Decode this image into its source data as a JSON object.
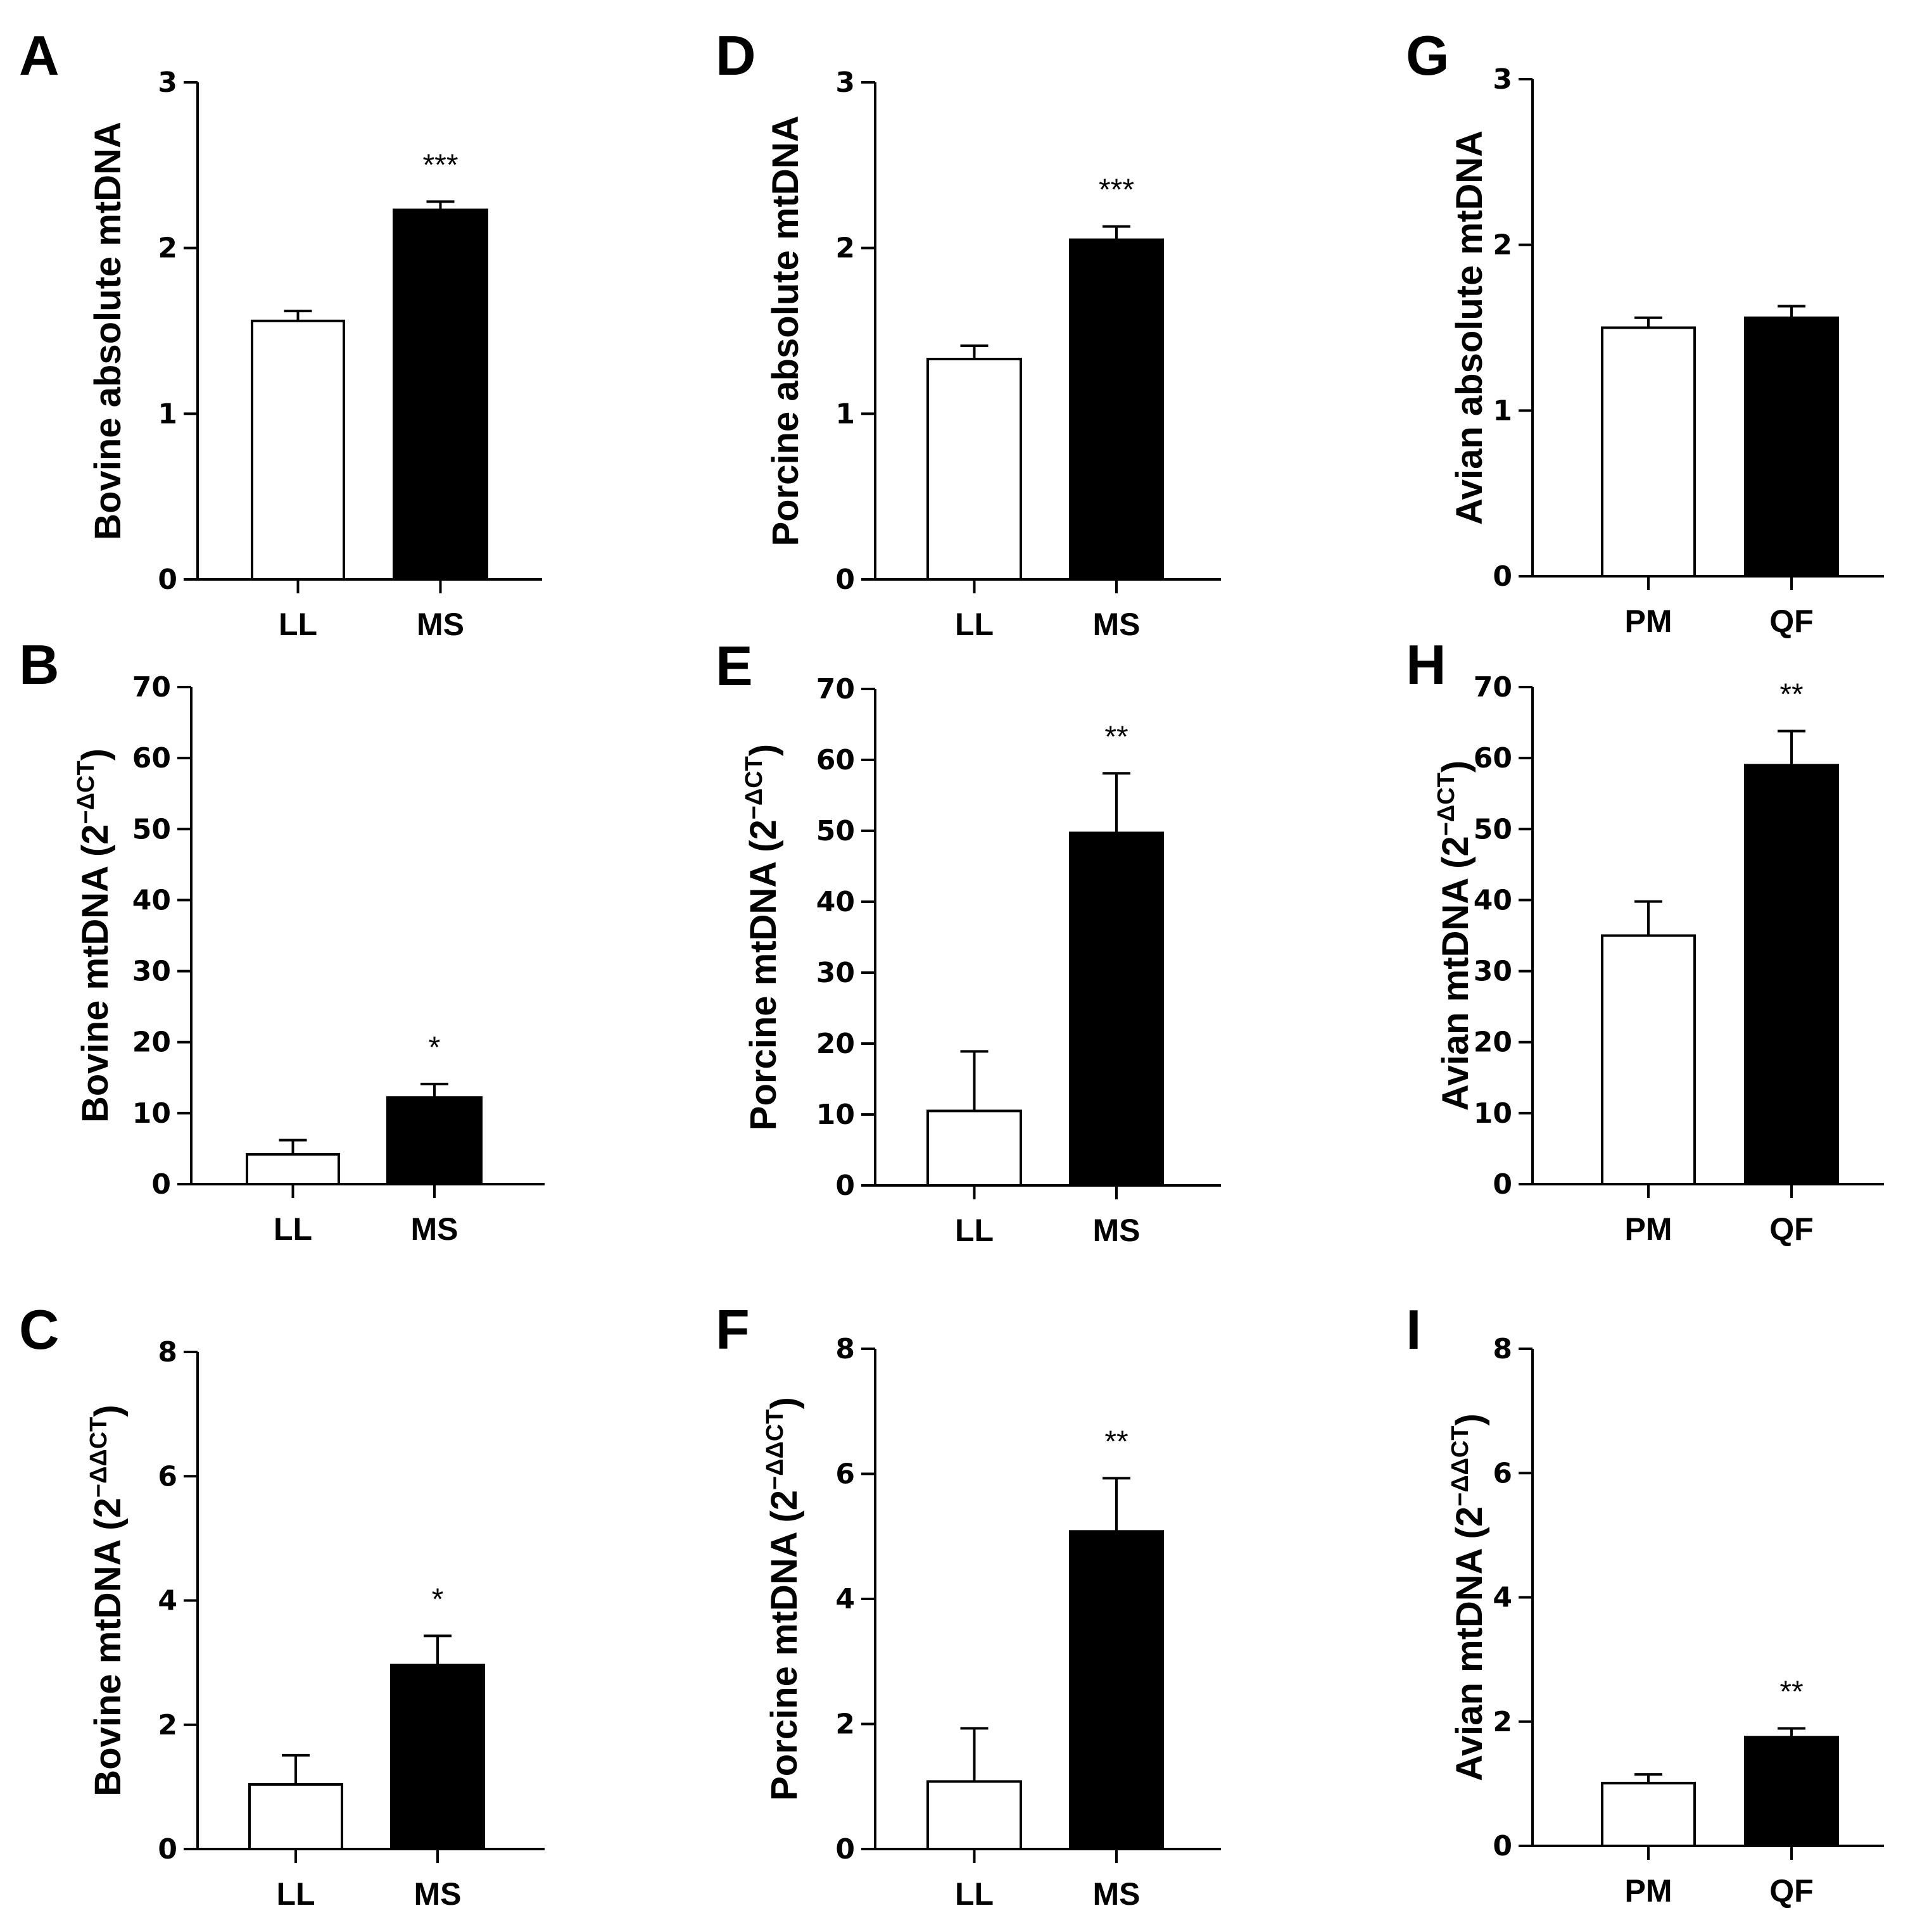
{
  "figure": {
    "description_free": true,
    "colors": {
      "control_bar": "#ffffff",
      "treatment_bar": "#000000",
      "axis": "#000000"
    }
  },
  "chart_data": [
    {
      "panel": "A",
      "type": "bar",
      "categories": [
        "LL",
        "MS"
      ],
      "values": [
        1.56,
        2.23
      ],
      "errors": [
        0.06,
        0.05
      ],
      "significance": [
        "",
        "***"
      ],
      "ylabel": {
        "main": "Bovine absolute mtDNA",
        "sup": ""
      },
      "ylim": [
        0,
        3
      ],
      "yticks": [
        0,
        1,
        2,
        3
      ]
    },
    {
      "panel": "B",
      "type": "bar",
      "categories": [
        "LL",
        "MS"
      ],
      "values": [
        4.2,
        12.2
      ],
      "errors": [
        2.0,
        1.9
      ],
      "significance": [
        "",
        "*"
      ],
      "ylabel": {
        "main": "Bovine mtDNA (2",
        "sup": "−ΔCT",
        "close": ")"
      },
      "ylim": [
        0,
        70
      ],
      "yticks": [
        0,
        10,
        20,
        30,
        40,
        50,
        60,
        70
      ]
    },
    {
      "panel": "C",
      "type": "bar",
      "categories": [
        "LL",
        "MS"
      ],
      "values": [
        1.04,
        2.96
      ],
      "errors": [
        0.47,
        0.47
      ],
      "significance": [
        "",
        "*"
      ],
      "ylabel": {
        "main": "Bovine mtDNA (2",
        "sup": "−ΔΔCT",
        "close": ")"
      },
      "ylim": [
        0,
        8
      ],
      "yticks": [
        0,
        2,
        4,
        6,
        8
      ]
    },
    {
      "panel": "D",
      "type": "bar",
      "categories": [
        "LL",
        "MS"
      ],
      "values": [
        1.33,
        2.05
      ],
      "errors": [
        0.08,
        0.08
      ],
      "significance": [
        "",
        "***"
      ],
      "ylabel": {
        "main": "Porcine absolute mtDNA",
        "sup": ""
      },
      "ylim": [
        0,
        3
      ],
      "yticks": [
        0,
        1,
        2,
        3
      ]
    },
    {
      "panel": "E",
      "type": "bar",
      "categories": [
        "LL",
        "MS"
      ],
      "values": [
        10.5,
        49.7
      ],
      "errors": [
        8.4,
        8.4
      ],
      "significance": [
        "",
        "**"
      ],
      "ylabel": {
        "main": "Porcine mtDNA (2",
        "sup": "−ΔCT",
        "close": ")"
      },
      "ylim": [
        0,
        70
      ],
      "yticks": [
        0,
        10,
        20,
        30,
        40,
        50,
        60,
        70
      ]
    },
    {
      "panel": "F",
      "type": "bar",
      "categories": [
        "LL",
        "MS"
      ],
      "values": [
        1.08,
        5.08
      ],
      "errors": [
        0.85,
        0.85
      ],
      "significance": [
        "",
        "**"
      ],
      "ylabel": {
        "main": "Porcine mtDNA (2",
        "sup": "−ΔΔCT",
        "close": ")"
      },
      "ylim": [
        0,
        8
      ],
      "yticks": [
        0,
        2,
        4,
        6,
        8
      ]
    },
    {
      "panel": "G",
      "type": "bar",
      "categories": [
        "PM",
        "QF"
      ],
      "values": [
        1.5,
        1.56
      ],
      "errors": [
        0.06,
        0.07
      ],
      "significance": [
        "",
        ""
      ],
      "ylabel": {
        "main": "Avian absolute mtDNA",
        "sup": ""
      },
      "ylim": [
        0,
        3
      ],
      "yticks": [
        0,
        1,
        2,
        3
      ]
    },
    {
      "panel": "H",
      "type": "bar",
      "categories": [
        "PM",
        "QF"
      ],
      "values": [
        35.0,
        59.0
      ],
      "errors": [
        4.8,
        4.8
      ],
      "significance": [
        "",
        "**"
      ],
      "ylabel": {
        "main": "Avian mtDNA (2",
        "sup": "−ΔCT",
        "close": ")"
      },
      "ylim": [
        0,
        70
      ],
      "yticks": [
        0,
        10,
        20,
        30,
        40,
        50,
        60,
        70
      ]
    },
    {
      "panel": "I",
      "type": "bar",
      "categories": [
        "PM",
        "QF"
      ],
      "values": [
        1.01,
        1.75
      ],
      "errors": [
        0.14,
        0.14
      ],
      "significance": [
        "",
        "**"
      ],
      "ylabel": {
        "main": "Avian mtDNA (2",
        "sup": "−ΔΔCT",
        "close": ")"
      },
      "ylim": [
        0,
        8
      ],
      "yticks": [
        0,
        2,
        4,
        6,
        8
      ]
    }
  ]
}
